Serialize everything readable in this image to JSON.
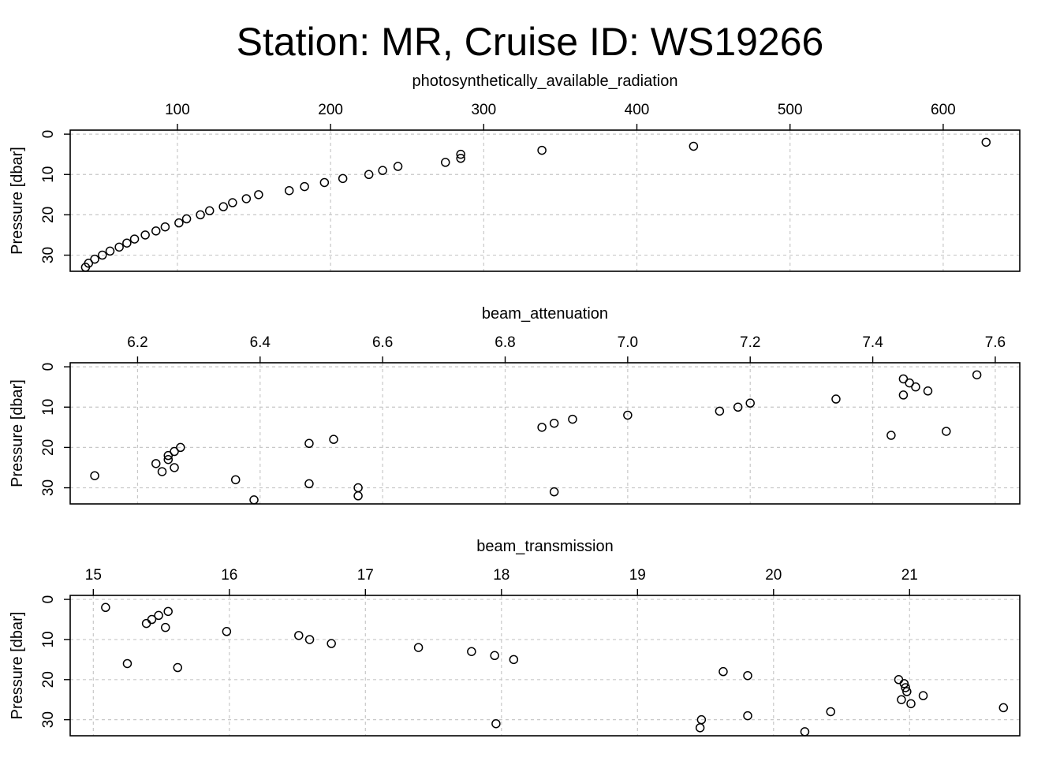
{
  "title": "Station: MR, Cruise ID: WS19266",
  "chart_data": [
    {
      "type": "scatter",
      "xlabel": "photosynthetically_available_radiation",
      "ylabel": "Pressure [dbar]",
      "x_axis_position": "top",
      "y_reversed": true,
      "grid": true,
      "xlim": [
        30,
        650
      ],
      "ylim": [
        34,
        -1
      ],
      "xticks": [
        100,
        200,
        300,
        400,
        500,
        600
      ],
      "yticks": [
        0,
        10,
        20,
        30
      ],
      "points": [
        {
          "x": 628,
          "y": 2
        },
        {
          "x": 437,
          "y": 3
        },
        {
          "x": 338,
          "y": 4
        },
        {
          "x": 285,
          "y": 5
        },
        {
          "x": 285,
          "y": 6
        },
        {
          "x": 275,
          "y": 7
        },
        {
          "x": 244,
          "y": 8
        },
        {
          "x": 234,
          "y": 9
        },
        {
          "x": 225,
          "y": 10
        },
        {
          "x": 208,
          "y": 11
        },
        {
          "x": 196,
          "y": 12
        },
        {
          "x": 183,
          "y": 13
        },
        {
          "x": 173,
          "y": 14
        },
        {
          "x": 153,
          "y": 15
        },
        {
          "x": 145,
          "y": 16
        },
        {
          "x": 136,
          "y": 17
        },
        {
          "x": 130,
          "y": 18
        },
        {
          "x": 121,
          "y": 19
        },
        {
          "x": 115,
          "y": 20
        },
        {
          "x": 106,
          "y": 21
        },
        {
          "x": 101,
          "y": 22
        },
        {
          "x": 92,
          "y": 23
        },
        {
          "x": 86,
          "y": 24
        },
        {
          "x": 79,
          "y": 25
        },
        {
          "x": 72,
          "y": 26
        },
        {
          "x": 67,
          "y": 27
        },
        {
          "x": 62,
          "y": 28
        },
        {
          "x": 56,
          "y": 29
        },
        {
          "x": 51,
          "y": 30
        },
        {
          "x": 46,
          "y": 31
        },
        {
          "x": 42,
          "y": 32
        },
        {
          "x": 40,
          "y": 33
        }
      ]
    },
    {
      "type": "scatter",
      "xlabel": "beam_attenuation",
      "ylabel": "Pressure [dbar]",
      "x_axis_position": "top",
      "y_reversed": true,
      "grid": true,
      "xlim": [
        6.09,
        7.64
      ],
      "ylim": [
        34,
        -1
      ],
      "xticks": [
        6.2,
        6.4,
        6.6,
        6.8,
        7.0,
        7.2,
        7.4,
        7.6
      ],
      "yticks": [
        0,
        10,
        20,
        30
      ],
      "points": [
        {
          "x": 7.57,
          "y": 2
        },
        {
          "x": 7.45,
          "y": 3
        },
        {
          "x": 7.46,
          "y": 4
        },
        {
          "x": 7.47,
          "y": 5
        },
        {
          "x": 7.49,
          "y": 6
        },
        {
          "x": 7.45,
          "y": 7
        },
        {
          "x": 7.34,
          "y": 8
        },
        {
          "x": 7.2,
          "y": 9
        },
        {
          "x": 7.18,
          "y": 10
        },
        {
          "x": 7.15,
          "y": 11
        },
        {
          "x": 7.0,
          "y": 12
        },
        {
          "x": 6.91,
          "y": 13
        },
        {
          "x": 6.88,
          "y": 14
        },
        {
          "x": 6.86,
          "y": 15
        },
        {
          "x": 7.52,
          "y": 16
        },
        {
          "x": 7.43,
          "y": 17
        },
        {
          "x": 6.52,
          "y": 18
        },
        {
          "x": 6.48,
          "y": 19
        },
        {
          "x": 6.27,
          "y": 20
        },
        {
          "x": 6.26,
          "y": 21
        },
        {
          "x": 6.25,
          "y": 22
        },
        {
          "x": 6.25,
          "y": 23
        },
        {
          "x": 6.23,
          "y": 24
        },
        {
          "x": 6.26,
          "y": 25
        },
        {
          "x": 6.24,
          "y": 26
        },
        {
          "x": 6.13,
          "y": 27
        },
        {
          "x": 6.36,
          "y": 28
        },
        {
          "x": 6.48,
          "y": 29
        },
        {
          "x": 6.56,
          "y": 30
        },
        {
          "x": 6.88,
          "y": 31
        },
        {
          "x": 6.56,
          "y": 32
        },
        {
          "x": 6.39,
          "y": 33
        }
      ]
    },
    {
      "type": "scatter",
      "xlabel": "beam_transmission",
      "ylabel": "Pressure [dbar]",
      "x_axis_position": "top",
      "y_reversed": true,
      "grid": true,
      "xlim": [
        14.83,
        21.81
      ],
      "ylim": [
        34,
        -1
      ],
      "xticks": [
        15,
        16,
        17,
        18,
        19,
        20,
        21
      ],
      "yticks": [
        0,
        10,
        20,
        30
      ],
      "points": [
        {
          "x": 15.09,
          "y": 2
        },
        {
          "x": 15.55,
          "y": 3
        },
        {
          "x": 15.48,
          "y": 4
        },
        {
          "x": 15.43,
          "y": 5
        },
        {
          "x": 15.39,
          "y": 6
        },
        {
          "x": 15.53,
          "y": 7
        },
        {
          "x": 15.98,
          "y": 8
        },
        {
          "x": 16.51,
          "y": 9
        },
        {
          "x": 16.59,
          "y": 10
        },
        {
          "x": 16.75,
          "y": 11
        },
        {
          "x": 17.39,
          "y": 12
        },
        {
          "x": 17.78,
          "y": 13
        },
        {
          "x": 17.95,
          "y": 14
        },
        {
          "x": 18.09,
          "y": 15
        },
        {
          "x": 15.25,
          "y": 16
        },
        {
          "x": 15.62,
          "y": 17
        },
        {
          "x": 19.63,
          "y": 18
        },
        {
          "x": 19.81,
          "y": 19
        },
        {
          "x": 20.92,
          "y": 20
        },
        {
          "x": 20.96,
          "y": 21
        },
        {
          "x": 20.97,
          "y": 22
        },
        {
          "x": 20.98,
          "y": 23
        },
        {
          "x": 21.1,
          "y": 24
        },
        {
          "x": 20.94,
          "y": 25
        },
        {
          "x": 21.01,
          "y": 26
        },
        {
          "x": 21.69,
          "y": 27
        },
        {
          "x": 20.42,
          "y": 28
        },
        {
          "x": 19.81,
          "y": 29
        },
        {
          "x": 19.47,
          "y": 30
        },
        {
          "x": 17.96,
          "y": 31
        },
        {
          "x": 19.46,
          "y": 32
        },
        {
          "x": 20.23,
          "y": 33
        }
      ]
    }
  ]
}
